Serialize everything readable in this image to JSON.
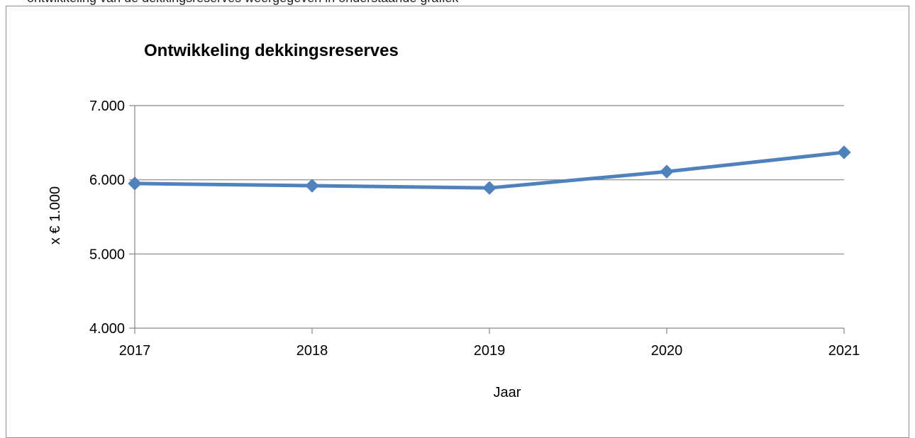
{
  "header_strip": {
    "text": "ontwikkeling van de dekkingsreserves weergegeven in onderstaande grafiek"
  },
  "chart_data": {
    "type": "line",
    "title": "Ontwikkeling dekkingsreserves",
    "xlabel": "Jaar",
    "ylabel": "x € 1.000",
    "categories": [
      "2017",
      "2018",
      "2019",
      "2020",
      "2021"
    ],
    "series": [
      {
        "values": [
          5950,
          5920,
          5890,
          6110,
          6370
        ],
        "color": "#4f81bd"
      }
    ],
    "ylim": [
      4000,
      7000
    ],
    "yticks": [
      4000,
      5000,
      6000,
      7000
    ],
    "ytick_labels": [
      "4.000",
      "5.000",
      "6.000",
      "7.000"
    ],
    "grid": true,
    "legend": "none",
    "gridline_color": "#868686",
    "axis_color": "#868686"
  }
}
